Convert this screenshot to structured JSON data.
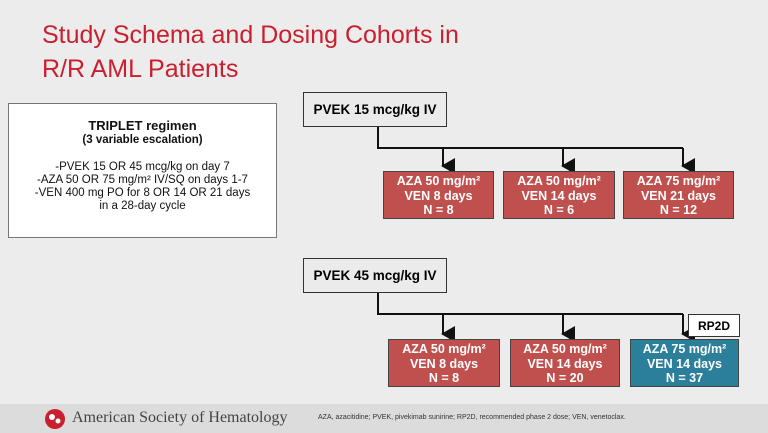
{
  "title": [
    "Study Schema and Dosing Cohorts in",
    "R/R AML Patients"
  ],
  "regimen": {
    "title": "TRIPLET regimen",
    "subtitle": "(3 variable escalation)",
    "lines": [
      "-PVEK 15 OR 45 mcg/kg on day 7",
      "-AZA 50 OR 75 mg/m² IV/SQ on days 1-7",
      "-VEN 400 mg PO for 8 OR 14 OR 21 days",
      "in a 28-day cycle"
    ]
  },
  "groups": [
    {
      "label": "PVEK 15 mcg/kg IV",
      "cohorts": [
        {
          "lines": [
            "AZA 50 mg/m²",
            "VEN 8 days",
            "N = 8"
          ]
        },
        {
          "lines": [
            "AZA 50 mg/m²",
            "VEN 14 days",
            "N = 6"
          ]
        },
        {
          "lines": [
            "AZA 75 mg/m²",
            "VEN 21 days",
            "N = 12"
          ]
        }
      ]
    },
    {
      "label": "PVEK 45 mcg/kg IV",
      "cohorts": [
        {
          "lines": [
            "AZA 50 mg/m²",
            "VEN 8 days",
            "N = 8"
          ]
        },
        {
          "lines": [
            "AZA 50 mg/m²",
            "VEN 14 days",
            "N = 20"
          ]
        },
        {
          "lines": [
            "AZA 75 mg/m²",
            "VEN 14 days",
            "N = 37"
          ]
        }
      ]
    }
  ],
  "rp2d": "RP2D",
  "footer": {
    "org": "American Society of Hematology",
    "note": "AZA, azacitidine; PVEK, pivekimab sunirine; RP2D, recommended phase 2 dose; VEN, venetoclax."
  }
}
